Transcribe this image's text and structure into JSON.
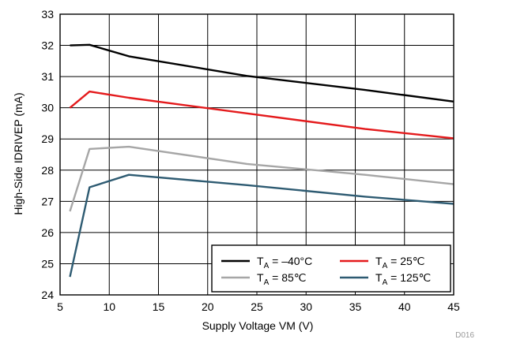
{
  "chart_data": {
    "type": "line",
    "xlabel": "Supply Voltage VM (V)",
    "ylabel": "High-Side IDRIVEP (mA)",
    "xlim": [
      5,
      45
    ],
    "ylim": [
      24,
      33
    ],
    "xticks": [
      5,
      10,
      15,
      20,
      25,
      30,
      35,
      40,
      45
    ],
    "yticks": [
      24,
      25,
      26,
      27,
      28,
      29,
      30,
      31,
      32,
      33
    ],
    "grid": true,
    "legend_position": "bottom-right",
    "figure_id": "D016",
    "series": [
      {
        "name": "T_A = −40°C",
        "sub_label": "A",
        "name_prefix": "T",
        "name_suffix": " = –40°C",
        "color": "#000000",
        "x": [
          6,
          8,
          12,
          24,
          36,
          45
        ],
        "y": [
          32.0,
          32.02,
          31.65,
          31.02,
          30.57,
          30.2
        ]
      },
      {
        "name": "T_A = 25℃",
        "sub_label": "A",
        "name_prefix": "T",
        "name_suffix": " = 25℃",
        "color": "#e41a1c",
        "x": [
          6,
          8,
          12,
          24,
          36,
          45
        ],
        "y": [
          30.0,
          30.52,
          30.32,
          29.82,
          29.32,
          29.02
        ]
      },
      {
        "name": "T_A = 85℃",
        "sub_label": "A",
        "name_prefix": "T",
        "name_suffix": " = 85℃",
        "color": "#a6a6a6",
        "x": [
          6,
          8,
          12,
          24,
          36,
          45
        ],
        "y": [
          26.68,
          28.68,
          28.75,
          28.2,
          27.85,
          27.55
        ]
      },
      {
        "name": "T_A = 125℃",
        "sub_label": "A",
        "name_prefix": "T",
        "name_suffix": " = 125℃",
        "color": "#2e5b72",
        "x": [
          6,
          8,
          12,
          24,
          36,
          45
        ],
        "y": [
          24.58,
          27.45,
          27.85,
          27.52,
          27.15,
          26.92
        ]
      }
    ]
  }
}
